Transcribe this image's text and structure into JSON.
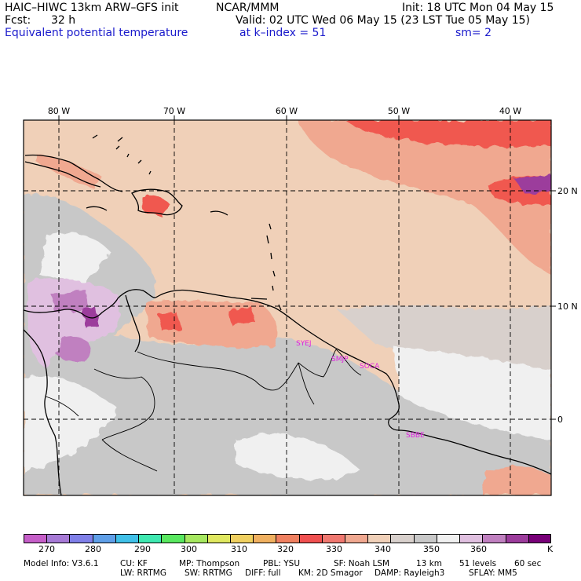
{
  "header": {
    "model_title": "HAIC–HIWC 13km ARW–GFS init",
    "org": "NCAR/MMM",
    "init": "Init: 18 UTC Mon 04 May 15",
    "fcst_label": "Fcst:",
    "fcst_value": "32 h",
    "valid": "Valid: 02 UTC Wed 06 May 15 (23 LST Tue 05 May 15)",
    "field": "Equivalent potential temperature",
    "level": "at k–index =  51",
    "smooth": "sm= 2"
  },
  "map": {
    "lon_labels": [
      "80 W",
      "70 W",
      "60 W",
      "50 W",
      "40 W"
    ],
    "lat_labels": [
      "20 N",
      "10 N",
      "0"
    ],
    "stations": [
      "SYEJ",
      "SMJP",
      "SOCA",
      "SBBE"
    ]
  },
  "colorbar": {
    "unit": "K",
    "tick_labels": [
      "270",
      "280",
      "290",
      "300",
      "310",
      "320",
      "330",
      "340",
      "350",
      "360"
    ],
    "colors": [
      "#c55ec8",
      "#a77ad6",
      "#7f7fe8",
      "#5f9fe8",
      "#40c0e8",
      "#3ee8b0",
      "#59e860",
      "#a6e860",
      "#e0e860",
      "#f0d060",
      "#f0b060",
      "#f08060",
      "#f05050",
      "#f07870",
      "#f0a890",
      "#f0d0b8",
      "#d8d0cc",
      "#c8c8c8",
      "#f0f0f0",
      "#e0c0e0",
      "#c080c0",
      "#9c3c9c",
      "#780078"
    ]
  },
  "model_info": {
    "line1": [
      "Model Info: V3.6.1",
      "CU: KF",
      "MP: Thompson",
      "PBL: YSU",
      "SF: Noah LSM",
      "13 km",
      "51 levels",
      "60 sec"
    ],
    "line2": [
      "LW: RRTMG",
      "SW: RRTMG",
      "DIFF: full",
      "KM: 2D Smagor",
      "DAMP: Rayleigh3",
      "SFLAY: MM5"
    ]
  },
  "colors": {
    "grey": "#c8c8c8",
    "tan": "#f0d0b8",
    "salmon": "#f0a890",
    "red": "#f05850",
    "lavender": "#e0c0e0",
    "purple": "#9c3c9c",
    "station": "#e020e0",
    "label_blue": "#1a1acc"
  }
}
